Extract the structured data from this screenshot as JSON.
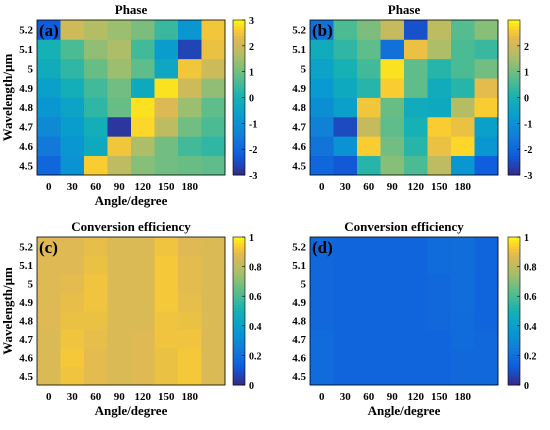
{
  "chart_data": [
    {
      "type": "heatmap",
      "panel_label": "(a)",
      "title": "Phase",
      "xlabel": "Angle/degree",
      "ylabel": "Wavelength/μm",
      "x": [
        "0",
        "30",
        "60",
        "90",
        "120",
        "150",
        "180"
      ],
      "y": [
        "4.5",
        "4.6",
        "4.7",
        "4.8",
        "4.9",
        "5",
        "5.1",
        "5.2"
      ],
      "x_cells": 8,
      "zlim": [
        -3,
        3
      ],
      "colorbar_ticks": [
        "3",
        "2",
        "1",
        "0",
        "-1",
        "-2",
        "-3"
      ],
      "values": [
        [
          -2.0,
          -1.0,
          2.6,
          1.8,
          1.2,
          1.0,
          0.9,
          0.8
        ],
        [
          -1.6,
          -0.9,
          -0.3,
          2.5,
          1.6,
          1.0,
          0.5,
          0.3
        ],
        [
          -1.2,
          -0.7,
          -0.1,
          -2.8,
          2.7,
          1.8,
          1.0,
          0.6
        ],
        [
          -0.9,
          -0.5,
          0.3,
          0.9,
          2.8,
          2.2,
          1.4,
          0.8
        ],
        [
          -0.6,
          -0.1,
          0.5,
          1.0,
          -0.3,
          2.8,
          2.0,
          1.3
        ],
        [
          -0.2,
          0.3,
          0.9,
          1.4,
          0.8,
          -0.4,
          2.5,
          2.0
        ],
        [
          0.0,
          0.6,
          1.3,
          1.6,
          0.5,
          -0.7,
          -2.6,
          2.4
        ],
        [
          -2.2,
          2.0,
          1.7,
          1.4,
          1.1,
          0.4,
          -0.9,
          2.5
        ]
      ]
    },
    {
      "type": "heatmap",
      "panel_label": "(b)",
      "title": "Phase",
      "xlabel": "",
      "ylabel": "",
      "x": [
        "0",
        "30",
        "60",
        "90",
        "120",
        "150",
        "180"
      ],
      "y": [
        "4.5",
        "4.6",
        "4.7",
        "4.8",
        "4.9",
        "5",
        "5.1",
        "5.2"
      ],
      "x_cells": 8,
      "zlim": [
        -3,
        3
      ],
      "colorbar_ticks": [
        "2",
        "1",
        "0",
        "-1",
        "-2",
        "-3"
      ],
      "values": [
        [
          -2.0,
          -2.3,
          0.2,
          1.2,
          0.6,
          1.8,
          -0.9,
          -2.2
        ],
        [
          -1.7,
          -1.0,
          2.6,
          1.0,
          0.2,
          2.4,
          2.7,
          -0.9
        ],
        [
          -1.4,
          -2.5,
          1.9,
          0.8,
          0.0,
          2.6,
          2.4,
          -0.6
        ],
        [
          -1.1,
          -0.6,
          2.5,
          0.9,
          -0.2,
          -0.3,
          1.7,
          2.6
        ],
        [
          -0.8,
          -0.3,
          0.2,
          2.6,
          0.8,
          -0.2,
          0.2,
          2.3
        ],
        [
          -0.5,
          0.0,
          0.5,
          2.8,
          0.8,
          0.2,
          0.6,
          1.0
        ],
        [
          -0.2,
          0.3,
          0.8,
          -1.8,
          2.4,
          1.6,
          0.6,
          0.4
        ],
        [
          -1.8,
          0.6,
          1.1,
          1.9,
          -2.4,
          1.8,
          0.7,
          1.2
        ]
      ]
    },
    {
      "type": "heatmap",
      "panel_label": "(c)",
      "title": "Conversion efficiency",
      "xlabel": "Angle/degree",
      "ylabel": "Wavelength/μm",
      "x": [
        "0",
        "30",
        "60",
        "90",
        "120",
        "150",
        "180"
      ],
      "y": [
        "4.5",
        "4.6",
        "4.7",
        "4.8",
        "4.9",
        "5",
        "5.1",
        "5.2"
      ],
      "x_cells": 8,
      "zlim": [
        0,
        1
      ],
      "colorbar_ticks": [
        "1",
        "0.8",
        "0.6",
        "0.4",
        "0.2",
        "0"
      ],
      "values": [
        [
          0.86,
          0.91,
          0.88,
          0.86,
          0.87,
          0.9,
          0.92,
          0.86
        ],
        [
          0.86,
          0.92,
          0.88,
          0.86,
          0.87,
          0.9,
          0.92,
          0.86
        ],
        [
          0.86,
          0.91,
          0.89,
          0.86,
          0.87,
          0.91,
          0.91,
          0.86
        ],
        [
          0.87,
          0.9,
          0.9,
          0.86,
          0.86,
          0.91,
          0.9,
          0.86
        ],
        [
          0.87,
          0.89,
          0.91,
          0.86,
          0.86,
          0.92,
          0.89,
          0.86
        ],
        [
          0.87,
          0.88,
          0.91,
          0.86,
          0.86,
          0.92,
          0.88,
          0.86
        ],
        [
          0.87,
          0.87,
          0.9,
          0.86,
          0.86,
          0.92,
          0.88,
          0.86
        ],
        [
          0.87,
          0.87,
          0.89,
          0.86,
          0.86,
          0.91,
          0.87,
          0.86
        ]
      ]
    },
    {
      "type": "heatmap",
      "panel_label": "(d)",
      "title": "Conversion efficiency",
      "xlabel": "Angle/degree",
      "ylabel": "",
      "x": [
        "0",
        "30",
        "60",
        "90",
        "120",
        "150",
        "180"
      ],
      "y": [
        "4.5",
        "4.6",
        "4.7",
        "4.8",
        "4.9",
        "5",
        "5.1",
        "5.2"
      ],
      "x_cells": 8,
      "zlim": [
        0,
        1
      ],
      "colorbar_ticks": [
        "1",
        "0.8",
        "0.6",
        "0.4",
        "0.2",
        "0"
      ],
      "values": [
        [
          0.18,
          0.16,
          0.16,
          0.16,
          0.16,
          0.16,
          0.17,
          0.17
        ],
        [
          0.18,
          0.16,
          0.16,
          0.16,
          0.16,
          0.16,
          0.17,
          0.17
        ],
        [
          0.18,
          0.16,
          0.16,
          0.16,
          0.16,
          0.16,
          0.18,
          0.17
        ],
        [
          0.17,
          0.16,
          0.16,
          0.16,
          0.16,
          0.17,
          0.18,
          0.16
        ],
        [
          0.17,
          0.16,
          0.16,
          0.16,
          0.16,
          0.17,
          0.19,
          0.16
        ],
        [
          0.17,
          0.16,
          0.16,
          0.16,
          0.16,
          0.17,
          0.19,
          0.16
        ],
        [
          0.17,
          0.16,
          0.16,
          0.16,
          0.16,
          0.18,
          0.19,
          0.16
        ],
        [
          0.17,
          0.16,
          0.16,
          0.16,
          0.16,
          0.18,
          0.19,
          0.16
        ]
      ]
    }
  ]
}
